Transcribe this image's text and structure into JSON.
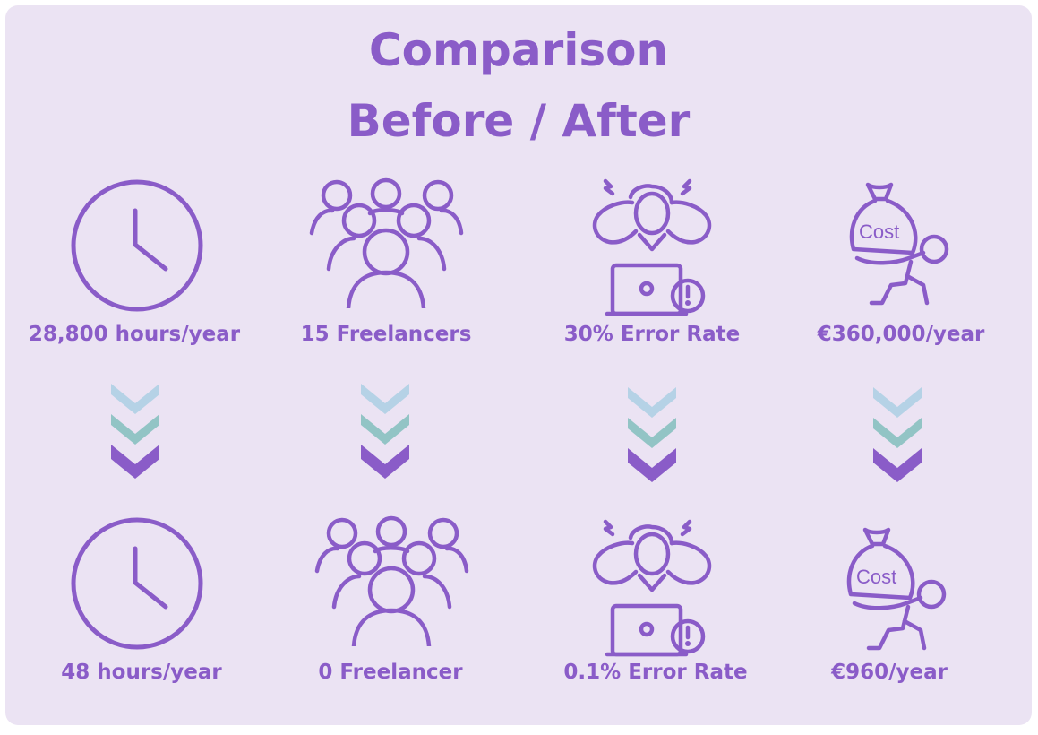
{
  "title": {
    "line1": "Comparison",
    "line2": "Before / After"
  },
  "colors": {
    "background": "#ebe3f3",
    "accent": "#8a5cc8",
    "chevron_top": "#b5d2e6",
    "chevron_middle": "#92c4c5",
    "chevron_bottom": "#8a5cc8"
  },
  "before": {
    "time": "28,800 hours/year",
    "freelancers": "15 Freelancers",
    "errors": "30% Error Rate",
    "cost": "€360,000/year"
  },
  "after": {
    "time": "48 hours/year",
    "freelancers": "0 Freelancer",
    "errors": "0.1% Error Rate",
    "cost": "€960/year"
  },
  "icons": {
    "time": "clock-icon",
    "freelancers": "people-group-icon",
    "errors": "stressed-person-laptop-icon",
    "cost": "person-carrying-cost-bag-icon",
    "arrow": "triple-chevron-down-icon",
    "cost_bag_text": "Cost"
  }
}
